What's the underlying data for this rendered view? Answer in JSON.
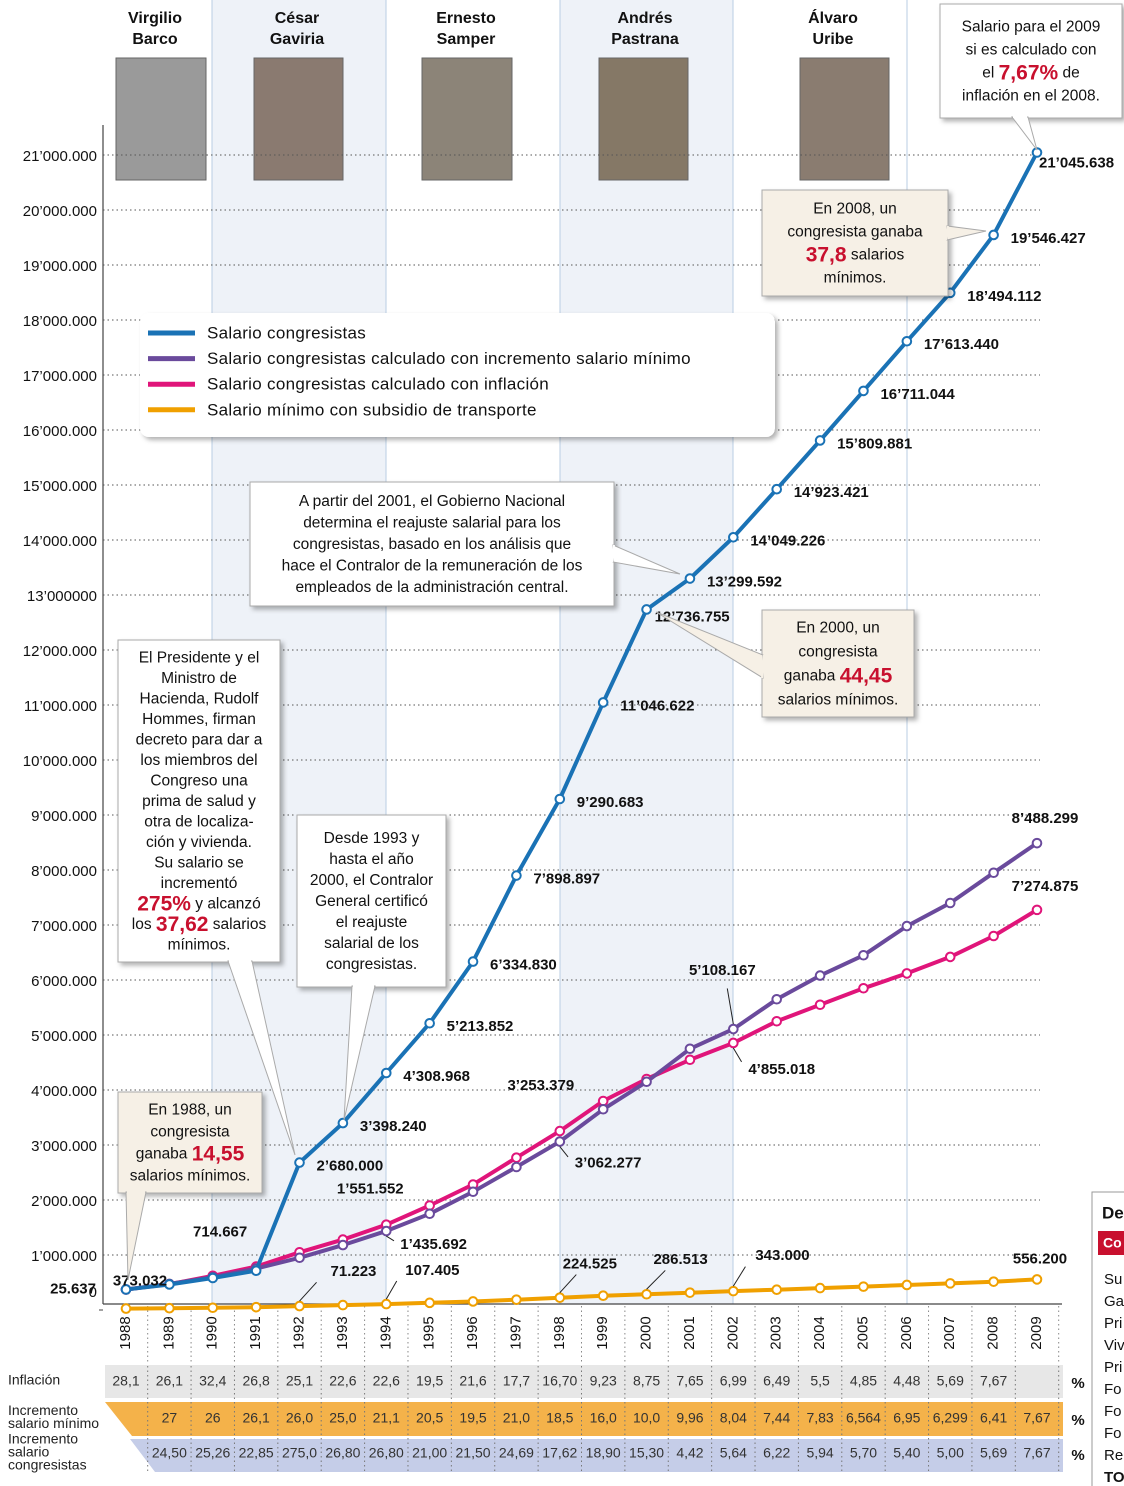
{
  "chart_data": {
    "type": "line",
    "categories": [
      "1988",
      "1989",
      "1990",
      "1991",
      "1992",
      "1993",
      "1994",
      "1995",
      "1996",
      "1997",
      "1998",
      "1999",
      "2000",
      "2001",
      "2002",
      "2003",
      "2004",
      "2005",
      "2006",
      "2007",
      "2008",
      "2009"
    ],
    "ylim": [
      0,
      21000000
    ],
    "yticks": [
      0,
      {
        "value": 1000000,
        "label": "1’000.000"
      },
      {
        "value": 2000000,
        "label": "2’000.000"
      },
      {
        "value": 3000000,
        "label": "3’000.000"
      },
      {
        "value": 4000000,
        "label": "4’000.000"
      },
      {
        "value": 5000000,
        "label": "5’000.000"
      },
      {
        "value": 6000000,
        "label": "6’000.000"
      },
      {
        "value": 7000000,
        "label": "7’000.000"
      },
      {
        "value": 8000000,
        "label": "8’000.000"
      },
      {
        "value": 9000000,
        "label": "9’000.000"
      },
      {
        "value": 10000000,
        "label": "10’000.000"
      },
      {
        "value": 11000000,
        "label": "11’000.000"
      },
      {
        "value": 12000000,
        "label": "12’000.000"
      },
      {
        "value": 13000000,
        "label": "13’000000"
      },
      {
        "value": 14000000,
        "label": "14’000.000"
      },
      {
        "value": 15000000,
        "label": "15’000.000"
      },
      {
        "value": 16000000,
        "label": "16’000.000"
      },
      {
        "value": 17000000,
        "label": "17’000.000"
      },
      {
        "value": 18000000,
        "label": "18’000.000"
      },
      {
        "value": 19000000,
        "label": "19’000.000"
      },
      {
        "value": 20000000,
        "label": "20’000.000"
      },
      {
        "value": 21000000,
        "label": "21’000.000"
      }
    ],
    "grid": true,
    "series": [
      {
        "name": "Salario congresistas",
        "color": "#1a72b5",
        "values": [
          373032,
          464425,
          581739,
          714667,
          2680000,
          3398240,
          4308968,
          5213852,
          6334830,
          7898897,
          9290683,
          11046622,
          12736755,
          13299592,
          14049226,
          14923421,
          15809881,
          16711044,
          17613440,
          18494112,
          19546427,
          21045638
        ],
        "value_labels": [
          "373.032",
          null,
          null,
          "714.667",
          "2’680.000",
          "3’398.240",
          "4’308.968",
          "5’213.852",
          "6’334.830",
          "7’898.897",
          "9’290.683",
          "11’046.622",
          "12’736.755",
          "13’299.592",
          "14’049.226",
          "14’923.421",
          "15’809.881",
          "16’711.044",
          "17’613.440",
          "18’494.112",
          "19’546.427",
          "21’045.638"
        ]
      },
      {
        "name": "Salario congresistas calculado con incremento salario mínimo",
        "color": "#6a4a9c",
        "values": [
          373032,
          473751,
          596926,
          752724,
          950000,
          1180000,
          1435692,
          1750000,
          2150000,
          2600000,
          3062277,
          3650000,
          4150000,
          4750000,
          5108167,
          5650000,
          6080000,
          6450000,
          6980000,
          7400000,
          7950000,
          8488299
        ],
        "value_labels": [
          null,
          null,
          null,
          null,
          null,
          null,
          "1’435.692",
          null,
          null,
          null,
          "3’062.277",
          null,
          null,
          null,
          "5’108.167",
          null,
          null,
          null,
          null,
          null,
          null,
          "8’488.299"
        ]
      },
      {
        "name": "Salario congresistas calculado con inflación",
        "color": "#e0157a",
        "values": [
          373032,
          470000,
          622000,
          789000,
          1050000,
          1280000,
          1551552,
          1900000,
          2280000,
          2770000,
          3253379,
          3800000,
          4200000,
          4550000,
          4855018,
          5250000,
          5550000,
          5850000,
          6120000,
          6420000,
          6800000,
          7274875
        ],
        "value_labels": [
          null,
          null,
          null,
          null,
          null,
          null,
          "1’551.552",
          null,
          null,
          null,
          "3’253.379",
          null,
          null,
          null,
          "4’855.018",
          null,
          null,
          null,
          null,
          null,
          null,
          "7’274.875"
        ]
      },
      {
        "name": "Salario mínimo con subsidio de transporte",
        "color": "#f0a000",
        "values": [
          25637,
          32560,
          41000,
          51720,
          71223,
          89000,
          107405,
          130000,
          155000,
          188000,
          224525,
          260000,
          286513,
          315000,
          343000,
          369000,
          398000,
          425000,
          455000,
          484000,
          515000,
          556200
        ],
        "value_labels": [
          "25.637",
          null,
          null,
          null,
          "71.223",
          null,
          "107.405",
          null,
          null,
          null,
          "224.525",
          null,
          "286.513",
          null,
          "343.000",
          null,
          null,
          null,
          null,
          null,
          null,
          "556.200"
        ]
      }
    ]
  },
  "presidents": [
    {
      "name": [
        "Virgilio",
        "Barco"
      ]
    },
    {
      "name": [
        "César",
        "Gaviria"
      ]
    },
    {
      "name": [
        "Ernesto",
        "Samper"
      ]
    },
    {
      "name": [
        "Andrés",
        "Pastrana"
      ]
    },
    {
      "name": [
        "Álvaro",
        "Uribe"
      ]
    }
  ],
  "annotations": [
    {
      "lines": [
        [
          "Salario para el 2009"
        ],
        [
          "si es calculado con"
        ],
        [
          "el ",
          {
            "em": "7,67%"
          },
          " de"
        ],
        [
          "inflación en el 2008."
        ]
      ]
    },
    {
      "lines": [
        [
          "En 2008, un"
        ],
        [
          "congresista ganaba"
        ],
        [
          {
            "em": "37,8"
          },
          " salarios"
        ],
        [
          "mínimos."
        ]
      ]
    },
    {
      "lines": [
        [
          "A partir del 2001, el Gobierno Nacional"
        ],
        [
          "determina el reajuste salarial para los"
        ],
        [
          "congresistas, basado en los análisis que"
        ],
        [
          "hace el Contralor de la remuneración de los"
        ],
        [
          "empleados de la administración central."
        ]
      ]
    },
    {
      "lines": [
        [
          "En 2000, un"
        ],
        [
          "congresista"
        ],
        [
          "ganaba ",
          {
            "em": "44,45"
          }
        ],
        [
          "salarios mínimos."
        ]
      ]
    },
    {
      "lines": [
        [
          "El Presidente y el"
        ],
        [
          "Ministro de"
        ],
        [
          "Hacienda, Rudolf"
        ],
        [
          "Hommes, firman"
        ],
        [
          "decreto para dar a"
        ],
        [
          "los miembros del"
        ],
        [
          "Congreso una"
        ],
        [
          "prima de salud y"
        ],
        [
          "otra de localiza-"
        ],
        [
          "ción y vivienda."
        ],
        [
          "Su salario se"
        ],
        [
          "incrementó"
        ],
        [
          {
            "em": "275%"
          },
          " y alcanzó"
        ],
        [
          "los ",
          {
            "em": "37,62"
          },
          " salarios"
        ],
        [
          "mínimos."
        ]
      ]
    },
    {
      "lines": [
        [
          "Desde 1993 y"
        ],
        [
          "hasta el año"
        ],
        [
          "2000, el Contralor"
        ],
        [
          "General certificó"
        ],
        [
          "el reajuste"
        ],
        [
          "salarial de los"
        ],
        [
          "congresistas."
        ]
      ]
    },
    {
      "lines": [
        [
          "En 1988, un"
        ],
        [
          "congresista"
        ],
        [
          "ganaba ",
          {
            "em": "14,55"
          }
        ],
        [
          "salarios mínimos."
        ]
      ]
    }
  ],
  "table": {
    "unit": "%",
    "rows": [
      {
        "label": [
          "Inflación"
        ],
        "values": [
          "28,1",
          "26,1",
          "32,4",
          "26,8",
          "25,1",
          "22,6",
          "22,6",
          "19,5",
          "21,6",
          "17,7",
          "16,70",
          "9,23",
          "8,75",
          "7,65",
          "6,99",
          "6,49",
          "5,5",
          "4,85",
          "4,48",
          "5,69",
          "7,67",
          null
        ]
      },
      {
        "label": [
          "Incremento",
          "salario mínimo"
        ],
        "values": [
          null,
          "27",
          "26",
          "26,1",
          "26,0",
          "25,0",
          "21,1",
          "20,5",
          "19,5",
          "21,0",
          "18,5",
          "16,0",
          "10,0",
          "9,96",
          "8,04",
          "7,44",
          "7,83",
          "6,564",
          "6,95",
          "6,299",
          "6,41",
          "7,67"
        ]
      },
      {
        "label": [
          "Incremento",
          "salario",
          "congresistas"
        ],
        "values": [
          null,
          "24,50",
          "25,26",
          "22,85",
          "275,0",
          "26,80",
          "26,80",
          "21,00",
          "21,50",
          "24,69",
          "17,62",
          "18,90",
          "15,30",
          "4,42",
          "5,64",
          "6,22",
          "5,94",
          "5,70",
          "5,40",
          "5,00",
          "5,69",
          "7,67"
        ]
      }
    ]
  },
  "side_panel": {
    "title": "De",
    "header": "Co",
    "rows": [
      "Su",
      "Ga",
      "Pri",
      "Viv",
      "Pri",
      "Fo",
      "Fo",
      "Fo",
      "Re",
      "TO"
    ]
  }
}
